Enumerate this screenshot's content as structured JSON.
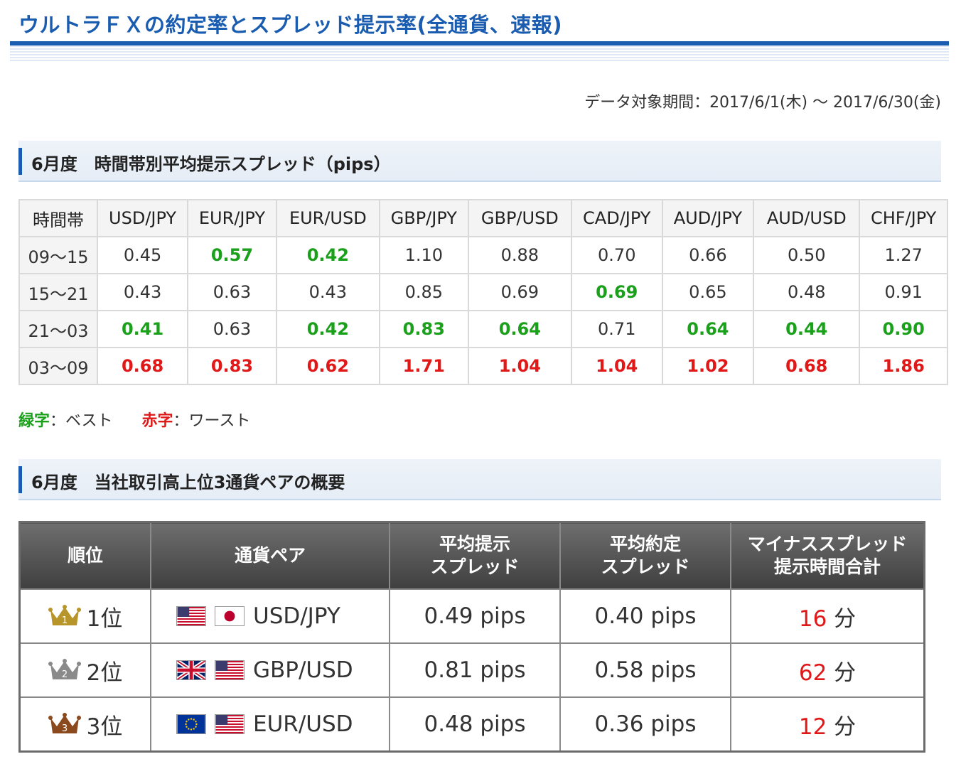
{
  "title": "ウルトラＦＸの約定率とスプレッド提示率(全通貨、速報)",
  "period": "データ対象期間：2017/6/1(木) 〜 2017/6/30(金)",
  "section1": {
    "title": "6月度　時間帯別平均提示スプレッド（pips）"
  },
  "spread_table": {
    "headers": [
      "時間帯",
      "USD/JPY",
      "EUR/JPY",
      "EUR/USD",
      "GBP/JPY",
      "GBP/USD",
      "CAD/JPY",
      "AUD/JPY",
      "AUD/USD",
      "CHF/JPY"
    ],
    "rows": [
      {
        "label": "09〜15",
        "values": [
          "0.45",
          "0.57",
          "0.42",
          "1.10",
          "0.88",
          "0.70",
          "0.66",
          "0.50",
          "1.27"
        ]
      },
      {
        "label": "15〜21",
        "values": [
          "0.43",
          "0.63",
          "0.43",
          "0.85",
          "0.69",
          "0.69",
          "0.65",
          "0.48",
          "0.91"
        ]
      },
      {
        "label": "21〜03",
        "values": [
          "0.41",
          "0.63",
          "0.42",
          "0.83",
          "0.64",
          "0.71",
          "0.64",
          "0.44",
          "0.90"
        ]
      },
      {
        "label": "03〜09",
        "values": [
          "0.68",
          "0.83",
          "0.62",
          "1.71",
          "1.04",
          "1.04",
          "1.02",
          "0.68",
          "1.86"
        ]
      }
    ]
  },
  "legend": {
    "best_label": "緑字",
    "best_text": "：ベスト",
    "worst_label": "赤字",
    "worst_text": "：ワースト"
  },
  "section2": {
    "title": "6月度　当社取引高上位3通貨ペアの概要"
  },
  "top3_table": {
    "headers": {
      "rank": "順位",
      "pair": "通貨ペア",
      "avg_spread_1": "平均提示",
      "avg_spread_2": "スプレッド",
      "avg_exec_1": "平均約定",
      "avg_exec_2": "スプレッド",
      "minus_1": "マイナススプレッド",
      "minus_2": "提示時間合計"
    },
    "rows": [
      {
        "rank": "1位",
        "pair": "USD/JPY",
        "avg": "0.49 pips",
        "exec": "0.40 pips",
        "minutes": "16",
        "unit": "分"
      },
      {
        "rank": "2位",
        "pair": "GBP/USD",
        "avg": "0.81 pips",
        "exec": "0.58 pips",
        "minutes": "62",
        "unit": "分"
      },
      {
        "rank": "3位",
        "pair": "EUR/USD",
        "avg": "0.48 pips",
        "exec": "0.36 pips",
        "minutes": "12",
        "unit": "分"
      }
    ],
    "colors": {
      "gold": "#b8952a",
      "silver": "#8a8a8a",
      "bronze": "#8b4a1e"
    }
  }
}
